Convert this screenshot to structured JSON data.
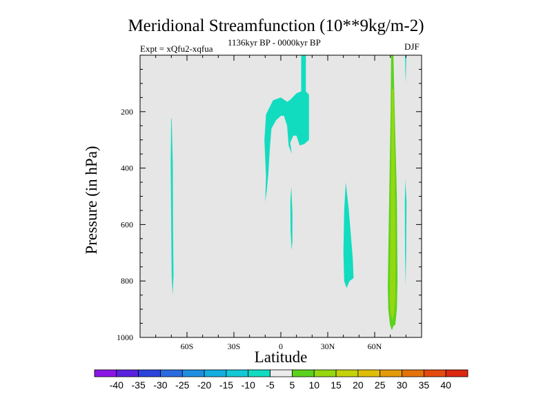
{
  "chart_data": {
    "type": "contour",
    "title": "Meridional Streamfunction (10**9kg/m-2)",
    "experiment": "Expt = xQfu2-xqfua",
    "period": "1136kyr BP - 0000kyr BP",
    "season": "DJF",
    "xlabel": "Latitude",
    "ylabel": "Pressure (in hPa)",
    "xlim": [
      -90,
      90
    ],
    "ylim": [
      1000,
      0
    ],
    "x_ticks": [
      {
        "value": -60,
        "label": "60S"
      },
      {
        "value": -30,
        "label": "30S"
      },
      {
        "value": 0,
        "label": "0"
      },
      {
        "value": 30,
        "label": "30N"
      },
      {
        "value": 60,
        "label": "60N"
      }
    ],
    "y_ticks": [
      {
        "value": 200,
        "label": "200"
      },
      {
        "value": 400,
        "label": "400"
      },
      {
        "value": 600,
        "label": "600"
      },
      {
        "value": 800,
        "label": "800"
      },
      {
        "value": 1000,
        "label": "1000"
      }
    ],
    "colorbar": {
      "labels": [
        "-40",
        "-35",
        "-30",
        "-25",
        "-20",
        "-15",
        "-10",
        "-5",
        "5",
        "10",
        "15",
        "20",
        "25",
        "30",
        "35",
        "40"
      ],
      "colors": [
        "#8a16e6",
        "#5a22e0",
        "#2c44dc",
        "#2a6be0",
        "#1f8ee0",
        "#14aee0",
        "#13c9d6",
        "#12dcc0",
        "#ebebeb",
        "#5cd21e",
        "#96d810",
        "#c4d20a",
        "#e0be08",
        "#e39a0a",
        "#e4730c",
        "#e44a0e",
        "#dd2810"
      ]
    },
    "background_color": "#e6e6e6",
    "regions": [
      {
        "name": "cyan-band-70S",
        "level": "-10 to -5",
        "color": "#12dcc0",
        "points": [
          [
            -69.8,
            225
          ],
          [
            -69.1,
            380
          ],
          [
            -68.9,
            620
          ],
          [
            -68.6,
            780
          ],
          [
            -69.2,
            850
          ],
          [
            -69.8,
            780
          ],
          [
            -70.1,
            600
          ],
          [
            -70.4,
            380
          ],
          [
            -70.1,
            225
          ]
        ]
      },
      {
        "name": "cyan-arc-equator",
        "level": "-10 to -5",
        "color": "#12dcc0",
        "points": [
          [
            -10,
            520
          ],
          [
            -9.5,
            430
          ],
          [
            -10.5,
            300
          ],
          [
            -9.5,
            210
          ],
          [
            -5,
            160
          ],
          [
            0,
            150
          ],
          [
            4,
            165
          ],
          [
            6,
            158
          ],
          [
            10,
            135
          ],
          [
            13,
            128
          ],
          [
            13,
            0
          ],
          [
            16,
            0
          ],
          [
            16,
            128
          ],
          [
            18,
            140
          ],
          [
            18,
            300
          ],
          [
            15,
            315
          ],
          [
            12,
            320
          ],
          [
            10,
            285
          ],
          [
            8,
            285
          ],
          [
            6,
            310
          ],
          [
            7,
            350
          ],
          [
            5,
            320
          ],
          [
            4,
            250
          ],
          [
            2,
            215
          ],
          [
            0,
            215
          ],
          [
            -3,
            230
          ],
          [
            -6,
            260
          ],
          [
            -7,
            330
          ],
          [
            -8,
            420
          ],
          [
            -9,
            480
          ]
        ]
      },
      {
        "name": "cyan-sliver-7N",
        "level": "-10 to -5",
        "color": "#12dcc0",
        "points": [
          [
            6.7,
            465
          ],
          [
            7.4,
            560
          ],
          [
            7.4,
            660
          ],
          [
            6.9,
            690
          ],
          [
            6.2,
            620
          ],
          [
            6.1,
            520
          ]
        ]
      },
      {
        "name": "cyan-plume-40N",
        "level": "-10 to -5",
        "color": "#12dcc0",
        "points": [
          [
            41.5,
            450
          ],
          [
            43.5,
            550
          ],
          [
            46,
            720
          ],
          [
            46.5,
            790
          ],
          [
            44,
            800
          ],
          [
            42,
            825
          ],
          [
            40.5,
            800
          ],
          [
            40,
            700
          ],
          [
            40.5,
            550
          ]
        ]
      },
      {
        "name": "cyan-sliver-80N-upper",
        "level": "-10 to -5",
        "color": "#12dcc0",
        "points": [
          [
            79.4,
            0
          ],
          [
            80.2,
            0
          ],
          [
            80.0,
            60
          ],
          [
            79.9,
            100
          ],
          [
            79.6,
            60
          ]
        ]
      },
      {
        "name": "cyan-sliver-80N-lower",
        "level": "-10 to -5",
        "color": "#12dcc0",
        "points": [
          [
            79.6,
            440
          ],
          [
            80.4,
            520
          ],
          [
            80.1,
            700
          ],
          [
            79.8,
            820
          ],
          [
            79.4,
            700
          ],
          [
            79.3,
            520
          ]
        ]
      },
      {
        "name": "green-column-70N",
        "level": "5 to 10",
        "color": "#5cd21e",
        "points": [
          [
            70.5,
            0
          ],
          [
            72,
            0
          ],
          [
            73,
            250
          ],
          [
            74.2,
            500
          ],
          [
            74.6,
            800
          ],
          [
            74.2,
            900
          ],
          [
            73.2,
            955
          ],
          [
            72,
            960
          ],
          [
            71,
            975
          ],
          [
            69.8,
            955
          ],
          [
            68.7,
            900
          ],
          [
            68.4,
            820
          ],
          [
            69.3,
            500
          ],
          [
            70.2,
            200
          ]
        ]
      },
      {
        "name": "yellow-core-70N",
        "level": "10 to 15",
        "color": "#96d810",
        "points": [
          [
            71,
            120
          ],
          [
            72,
            120
          ],
          [
            72.9,
            400
          ],
          [
            73.3,
            700
          ],
          [
            73.2,
            860
          ],
          [
            72.4,
            915
          ],
          [
            71.3,
            940
          ],
          [
            70.2,
            915
          ],
          [
            69.6,
            860
          ],
          [
            70,
            700
          ],
          [
            70.5,
            400
          ]
        ]
      }
    ]
  }
}
